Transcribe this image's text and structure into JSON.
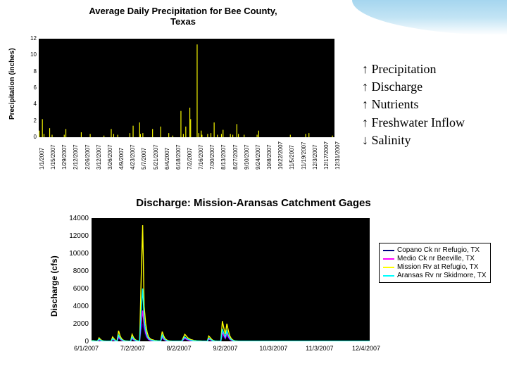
{
  "top_chart": {
    "type": "bar",
    "title": "Average Daily Precipitation for Bee County,\nTexas",
    "title_fontsize": 13,
    "ylabel": "Precipitation (inches)",
    "ylim": [
      0,
      12
    ],
    "ytick_step": 2,
    "yticks": [
      0,
      2,
      4,
      6,
      8,
      10,
      12
    ],
    "x_categories": [
      "1/1/2007",
      "1/15/2007",
      "1/29/2007",
      "2/12/2007",
      "2/26/2007",
      "3/12/2007",
      "3/26/2007",
      "4/9/2007",
      "4/23/2007",
      "5/7/2007",
      "5/21/2007",
      "6/4/2007",
      "6/18/2007",
      "7/2/2007",
      "7/16/2007",
      "7/30/2007",
      "8/13/2007",
      "8/27/2007",
      "9/10/2007",
      "9/24/2007",
      "10/8/2007",
      "10/22/2007",
      "11/5/2007",
      "11/19/2007",
      "12/3/2007",
      "12/17/2007",
      "12/31/2007"
    ],
    "bar_color": "#ffff00",
    "line_color": "#ffff00",
    "background_color": "#000000",
    "values_by_day": [
      0.8,
      0,
      0,
      0,
      2.2,
      0,
      0.4,
      0,
      0,
      0,
      0,
      0,
      0,
      1.1,
      0,
      0,
      0.3,
      0,
      0,
      0,
      0,
      0,
      0,
      0,
      0,
      0,
      0,
      0,
      0,
      0,
      0,
      0.3,
      0,
      1.0,
      0,
      0,
      0,
      0,
      0,
      0,
      0,
      0,
      0,
      0,
      0,
      0,
      0,
      0,
      0,
      0,
      0,
      0,
      0.6,
      0,
      0,
      0,
      0,
      0,
      0,
      0,
      0,
      0,
      0,
      0.4,
      0,
      0,
      0,
      0,
      0,
      0,
      0,
      0,
      0,
      0,
      0,
      0,
      0,
      0,
      0,
      0,
      0.2,
      0,
      0,
      0,
      0,
      0,
      0,
      0,
      0,
      1.0,
      0,
      0,
      0.4,
      0,
      0,
      0,
      0,
      0.3,
      0,
      0,
      0,
      0,
      0,
      0,
      0,
      0,
      0,
      0,
      0,
      0,
      0,
      0,
      0.5,
      0,
      0,
      0,
      1.4,
      0,
      0,
      0,
      0,
      0,
      0,
      0,
      1.8,
      0.4,
      0,
      0,
      0.5,
      0,
      0,
      0,
      0,
      0,
      0,
      0,
      0,
      0,
      0,
      0,
      1.0,
      0,
      0,
      0,
      0,
      0,
      0,
      0,
      0,
      0,
      1.3,
      0,
      0,
      0,
      0,
      0,
      0,
      0,
      0,
      0,
      0.5,
      0,
      0,
      0,
      0,
      0.2,
      0,
      0,
      0,
      0,
      0,
      0,
      0,
      0,
      0,
      3.2,
      0,
      0,
      0.4,
      0,
      0,
      1.3,
      0,
      0,
      0,
      0,
      3.6,
      2.2,
      0,
      0,
      0,
      0,
      0,
      0,
      0,
      11.3,
      0,
      0.5,
      0,
      0,
      0.8,
      0.3,
      0,
      0,
      0,
      0,
      0,
      0,
      0.4,
      0,
      0,
      0,
      0.5,
      0,
      0,
      0,
      1.8,
      0,
      0,
      0,
      0.3,
      0,
      0,
      0,
      0,
      0.4,
      0,
      0.9,
      0,
      0,
      0,
      0,
      0,
      0,
      0,
      0,
      0.4,
      0,
      0,
      0.3,
      0,
      0,
      0,
      0,
      1.6,
      0,
      0.4,
      0,
      0,
      0,
      0,
      0,
      0,
      0.3,
      0,
      0,
      0,
      0,
      0,
      0,
      0,
      0,
      0,
      0,
      0,
      0,
      0,
      0,
      0,
      0.3,
      0,
      0.8,
      0,
      0,
      0,
      0,
      0,
      0,
      0,
      0,
      0,
      0,
      0,
      0,
      0,
      0,
      0,
      0,
      0,
      0,
      0,
      0,
      0,
      0,
      0,
      0,
      0,
      0,
      0,
      0,
      0,
      0,
      0,
      0,
      0,
      0,
      0,
      0,
      0,
      0,
      0.3,
      0,
      0,
      0,
      0,
      0,
      0,
      0,
      0,
      0,
      0,
      0,
      0,
      0,
      0,
      0,
      0,
      0,
      0,
      0.4,
      0,
      0,
      0,
      0.5,
      0,
      0,
      0,
      0,
      0,
      0,
      0,
      0,
      0,
      0,
      0,
      0,
      0,
      0,
      0,
      0,
      0,
      0,
      0,
      0,
      0,
      0,
      0,
      0,
      0,
      0,
      0,
      0,
      0.2,
      0,
      0
    ]
  },
  "annotations": {
    "items": [
      "↑ Precipitation",
      "↑ Discharge",
      "↑ Nutrients",
      "↑ Freshwater Inflow",
      "↓ Salinity"
    ],
    "fontsize": 18,
    "color": "#000000"
  },
  "bottom_chart": {
    "type": "line",
    "title": "Discharge: Mission-Aransas Catchment Gages",
    "title_fontsize": 15,
    "ylabel": "Discharge (cfs)",
    "ylim": [
      0,
      14000
    ],
    "ytick_step": 2000,
    "yticks": [
      0,
      2000,
      4000,
      6000,
      8000,
      10000,
      12000,
      14000
    ],
    "x_categories": [
      "6/1/2007",
      "7/2/2007",
      "8/2/2007",
      "9/2/2007",
      "10/3/2007",
      "11/3/2007",
      "12/4/2007"
    ],
    "background_color": "#000000",
    "series": [
      {
        "name": "Copano Ck nr Refugio, TX",
        "color": "#000080"
      },
      {
        "name": "Medio Ck nr Beeville, TX",
        "color": "#ff00ff"
      },
      {
        "name": "Mission Rv at Refugio, TX",
        "color": "#ffff00"
      },
      {
        "name": "Aransas Rv nr Skidmore, TX",
        "color": "#00ffff"
      }
    ],
    "mission_values": [
      50,
      80,
      40,
      30,
      20,
      400,
      200,
      100,
      50,
      30,
      20,
      20,
      20,
      20,
      500,
      300,
      100,
      50,
      1200,
      600,
      300,
      150,
      80,
      40,
      30,
      20,
      20,
      800,
      400,
      200,
      100,
      50,
      30,
      7200,
      13200,
      4000,
      2000,
      1000,
      500,
      300,
      200,
      150,
      100,
      80,
      60,
      50,
      40,
      1100,
      600,
      300,
      150,
      80,
      40,
      30,
      20,
      20,
      20,
      20,
      20,
      20,
      20,
      400,
      800,
      600,
      400,
      300,
      200,
      150,
      100,
      80,
      60,
      50,
      40,
      30,
      20,
      20,
      20,
      20,
      600,
      400,
      200,
      100,
      50,
      30,
      20,
      20,
      20,
      2300,
      1500,
      800,
      2000,
      1200,
      600,
      300,
      150,
      80,
      40,
      30,
      20,
      20,
      20,
      20,
      20,
      20,
      20,
      20,
      20,
      20,
      20,
      20,
      20,
      20,
      20,
      20,
      20,
      20,
      20,
      20,
      20,
      20,
      20,
      20,
      20,
      20,
      20,
      20,
      20,
      20,
      20,
      20,
      20,
      20,
      20,
      20,
      20,
      20,
      20,
      20,
      20,
      20,
      20,
      20,
      20,
      20,
      20,
      20,
      20,
      20,
      20,
      20,
      20,
      20,
      20,
      20,
      20,
      20,
      20,
      20,
      20,
      20,
      20,
      20,
      20,
      20,
      20,
      20,
      20,
      20,
      20,
      20,
      20,
      20,
      20,
      20,
      20,
      20,
      20,
      20,
      20,
      20,
      20,
      20,
      20,
      20,
      20,
      20
    ],
    "aransas_values": [
      30,
      50,
      30,
      20,
      15,
      250,
      120,
      60,
      30,
      20,
      15,
      15,
      15,
      15,
      300,
      180,
      60,
      30,
      700,
      350,
      180,
      90,
      50,
      25,
      20,
      15,
      15,
      500,
      250,
      120,
      60,
      30,
      20,
      3500,
      6000,
      2500,
      1200,
      600,
      300,
      180,
      120,
      90,
      60,
      50,
      40,
      30,
      25,
      700,
      350,
      180,
      90,
      50,
      25,
      20,
      15,
      15,
      15,
      15,
      15,
      15,
      15,
      250,
      500,
      350,
      250,
      180,
      120,
      90,
      60,
      50,
      40,
      30,
      25,
      20,
      15,
      15,
      15,
      15,
      350,
      250,
      120,
      60,
      30,
      20,
      15,
      15,
      15,
      1400,
      900,
      500,
      1200,
      700,
      350,
      180,
      90,
      50,
      25,
      20,
      15,
      15,
      15,
      15,
      15,
      15,
      15,
      15,
      15,
      15,
      15,
      15,
      15,
      15,
      15,
      15,
      15,
      15,
      15,
      15,
      15,
      15,
      15,
      15,
      15,
      15,
      15,
      15,
      15,
      15,
      15,
      15,
      15,
      15,
      15,
      15,
      15,
      15,
      15,
      15,
      15,
      15,
      15,
      15,
      15,
      15,
      15,
      15,
      15,
      15,
      15,
      15,
      15,
      15,
      15,
      15,
      15,
      15,
      15,
      15,
      15,
      15,
      15,
      15,
      15,
      15,
      15,
      15,
      15,
      15,
      15,
      15,
      15,
      15,
      15,
      15,
      15,
      15,
      15,
      15,
      15,
      15,
      15,
      15,
      15,
      15,
      15,
      15
    ],
    "medio_values": [
      20,
      30,
      20,
      15,
      10,
      150,
      80,
      40,
      20,
      15,
      10,
      10,
      10,
      10,
      200,
      120,
      40,
      20,
      500,
      250,
      120,
      60,
      35,
      18,
      15,
      10,
      10,
      350,
      180,
      90,
      40,
      20,
      15,
      2000,
      3500,
      1800,
      900,
      450,
      220,
      120,
      80,
      60,
      40,
      35,
      28,
      22,
      18,
      500,
      250,
      120,
      60,
      35,
      18,
      15,
      10,
      10,
      10,
      10,
      10,
      10,
      10,
      180,
      350,
      250,
      180,
      120,
      80,
      60,
      40,
      35,
      28,
      22,
      18,
      15,
      10,
      10,
      10,
      10,
      250,
      180,
      90,
      40,
      20,
      15,
      10,
      10,
      10,
      1000,
      650,
      350,
      900,
      500,
      250,
      120,
      60,
      35,
      18,
      15,
      10,
      10,
      10,
      10,
      10,
      10,
      10,
      10,
      10,
      10,
      10,
      10,
      10,
      10,
      10,
      10,
      10,
      10,
      10,
      10,
      10,
      10,
      10,
      10,
      10,
      10,
      10,
      10,
      10,
      10,
      10,
      10,
      10,
      10,
      10,
      10,
      10,
      10,
      10,
      10,
      10,
      10,
      10,
      10,
      10,
      10,
      10,
      10,
      10,
      10,
      10,
      10,
      10,
      10,
      10,
      10,
      10,
      10,
      10,
      10,
      10,
      10,
      10,
      10,
      10,
      10,
      10,
      10,
      10,
      10,
      10,
      10,
      10,
      10,
      10,
      10,
      10,
      10,
      10,
      10,
      10,
      10,
      10,
      10,
      10,
      10,
      10,
      10
    ],
    "copano_values": [
      15,
      20,
      15,
      10,
      8,
      100,
      50,
      25,
      15,
      10,
      8,
      8,
      8,
      8,
      150,
      90,
      30,
      15,
      350,
      180,
      90,
      45,
      25,
      12,
      10,
      8,
      8,
      250,
      120,
      60,
      30,
      15,
      10,
      1200,
      2000,
      1200,
      600,
      300,
      150,
      90,
      55,
      40,
      30,
      25,
      20,
      15,
      12,
      350,
      180,
      90,
      45,
      25,
      12,
      10,
      8,
      8,
      8,
      8,
      8,
      8,
      8,
      120,
      250,
      180,
      120,
      90,
      55,
      40,
      30,
      25,
      20,
      15,
      12,
      10,
      8,
      8,
      8,
      8,
      180,
      120,
      60,
      30,
      15,
      10,
      8,
      8,
      8,
      700,
      450,
      250,
      600,
      350,
      180,
      90,
      45,
      25,
      12,
      10,
      8,
      8,
      8,
      8,
      8,
      8,
      8,
      8,
      8,
      8,
      8,
      8,
      8,
      8,
      8,
      8,
      8,
      8,
      8,
      8,
      8,
      8,
      8,
      8,
      8,
      8,
      8,
      8,
      8,
      8,
      8,
      8,
      8,
      8,
      8,
      8,
      8,
      8,
      8,
      8,
      8,
      8,
      8,
      8,
      8,
      8,
      8,
      8,
      8,
      8,
      8,
      8,
      8,
      8,
      8,
      8,
      8,
      8,
      8,
      8,
      8,
      8,
      8,
      8,
      8,
      8,
      8,
      8,
      8,
      8,
      8,
      8,
      8,
      8,
      8,
      8,
      8,
      8,
      8,
      8,
      8,
      8,
      8,
      8,
      8,
      8,
      8,
      8
    ]
  }
}
